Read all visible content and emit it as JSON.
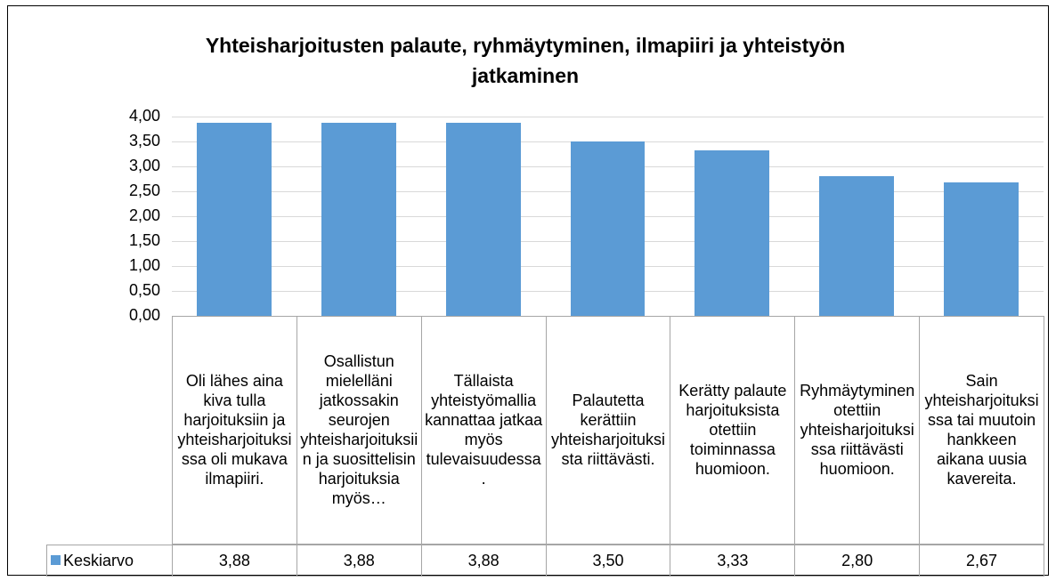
{
  "chart_data": {
    "type": "bar",
    "title": "Yhteisharjoitusten palaute, ryhmäytyminen, ilmapiiri ja yhteistyön jatkaminen",
    "categories": [
      "Oli lähes aina kiva tulla harjoituksiin ja yhteisharjoituksissa oli mukava ilmapiiri.",
      "Osallistun mielelläni jatkossakin seurojen yhteisharjoituksiin ja suosittelisin harjoituksia myös…",
      "Tällaista yhteistyömallia kannattaa jatkaa myös tulevaisuudessa.",
      "Palautetta kerättiin yhteisharjoituksista riittävästi.",
      "Kerätty palaute harjoituksista otettiin toiminnassa huomioon.",
      "Ryhmäytyminen otettiin yhteisharjoituksissa riittävästi huomioon.",
      "Sain yhteisharjoituksissa tai muutoin hankkeen aikana uusia kavereita."
    ],
    "series": [
      {
        "name": "Keskiarvo",
        "color": "#5b9bd5",
        "values": [
          3.88,
          3.88,
          3.88,
          3.5,
          3.33,
          2.8,
          2.67
        ],
        "value_labels": [
          "3,88",
          "3,88",
          "3,88",
          "3,50",
          "3,33",
          "2,80",
          "2,67"
        ]
      }
    ],
    "ylim": [
      0,
      4
    ],
    "yticks": [
      {
        "value": 0,
        "label": "0,00"
      },
      {
        "value": 0.5,
        "label": "0,50"
      },
      {
        "value": 1,
        "label": "1,00"
      },
      {
        "value": 1.5,
        "label": "1,50"
      },
      {
        "value": 2,
        "label": "2,00"
      },
      {
        "value": 2.5,
        "label": "2,50"
      },
      {
        "value": 3,
        "label": "3,00"
      },
      {
        "value": 3.5,
        "label": "3,50"
      },
      {
        "value": 4,
        "label": "4,00"
      }
    ],
    "grid": true
  }
}
